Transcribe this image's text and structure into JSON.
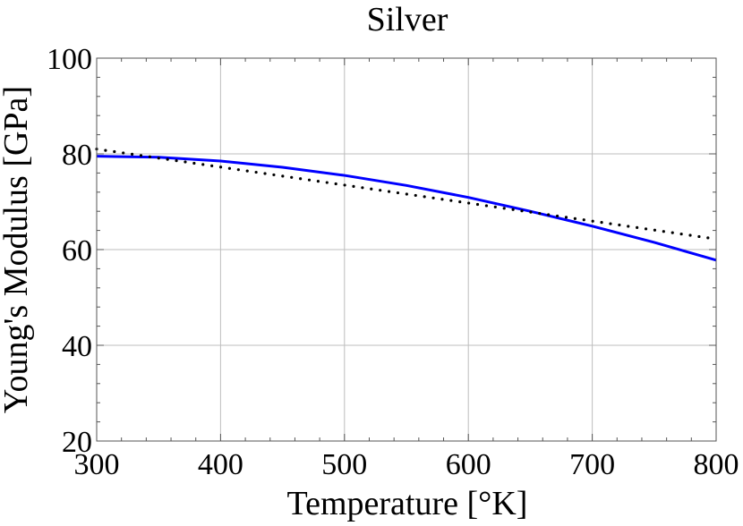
{
  "chart_data": {
    "type": "line",
    "title": "Silver",
    "xlabel": "Temperature [°K]",
    "ylabel": "Young's Modulus [GPa]",
    "xlim": [
      300,
      800
    ],
    "ylim": [
      20,
      100
    ],
    "x_ticks": [
      300,
      400,
      500,
      600,
      700,
      800
    ],
    "y_ticks": [
      20,
      40,
      60,
      80,
      100
    ],
    "x_tick_labels": [
      "300",
      "400",
      "500",
      "600",
      "700",
      "800"
    ],
    "y_tick_labels": [
      "20",
      "40",
      "60",
      "80",
      "100"
    ],
    "grid": true,
    "legend": "none",
    "series": [
      {
        "style": "solid",
        "color": "#0000ff",
        "x": [
          300,
          350,
          400,
          450,
          500,
          550,
          600,
          650,
          700,
          750,
          800
        ],
        "y": [
          79.5,
          79.3,
          78.5,
          77.2,
          75.5,
          73.4,
          70.9,
          68.0,
          64.9,
          61.5,
          57.8
        ]
      },
      {
        "style": "dotted",
        "color": "#000000",
        "x": [
          300,
          800
        ],
        "y": [
          81.0,
          62.2
        ]
      }
    ]
  }
}
